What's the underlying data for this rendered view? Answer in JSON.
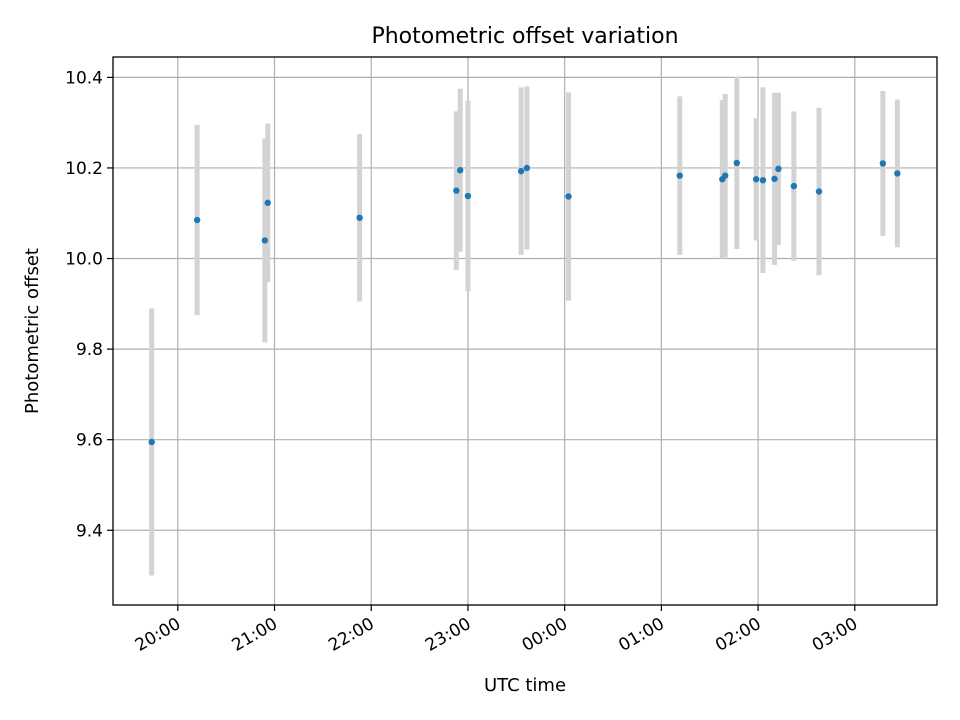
{
  "chart_data": {
    "type": "scatter",
    "title": "Photometric offset variation",
    "xlabel": "UTC time",
    "ylabel": "Photometric offset",
    "x_unit": "hours",
    "xlim": [
      19.33,
      27.85
    ],
    "ylim": [
      9.235,
      10.445
    ],
    "x_ticks": [
      {
        "value": 20,
        "label": "20:00"
      },
      {
        "value": 21,
        "label": "21:00"
      },
      {
        "value": 22,
        "label": "22:00"
      },
      {
        "value": 23,
        "label": "23:00"
      },
      {
        "value": 24,
        "label": "00:00"
      },
      {
        "value": 25,
        "label": "01:00"
      },
      {
        "value": 26,
        "label": "02:00"
      },
      {
        "value": 27,
        "label": "03:00"
      }
    ],
    "y_ticks": [
      {
        "value": 9.4,
        "label": "9.4"
      },
      {
        "value": 9.6,
        "label": "9.6"
      },
      {
        "value": 9.8,
        "label": "9.8"
      },
      {
        "value": 10.0,
        "label": "10.0"
      },
      {
        "value": 10.2,
        "label": "10.2"
      },
      {
        "value": 10.4,
        "label": "10.4"
      }
    ],
    "grid": true,
    "point_color": "#1f77b4",
    "errorbar_color": "#d3d3d3",
    "points": [
      {
        "x": 19.73,
        "y": 9.595,
        "err": 0.295
      },
      {
        "x": 20.2,
        "y": 10.085,
        "err": 0.21
      },
      {
        "x": 20.9,
        "y": 10.04,
        "err": 0.225
      },
      {
        "x": 20.93,
        "y": 10.123,
        "err": 0.175
      },
      {
        "x": 21.88,
        "y": 10.09,
        "err": 0.185
      },
      {
        "x": 22.88,
        "y": 10.15,
        "err": 0.175
      },
      {
        "x": 22.92,
        "y": 10.195,
        "err": 0.18
      },
      {
        "x": 23.0,
        "y": 10.138,
        "err": 0.21
      },
      {
        "x": 23.55,
        "y": 10.193,
        "err": 0.185
      },
      {
        "x": 23.61,
        "y": 10.2,
        "err": 0.18
      },
      {
        "x": 24.04,
        "y": 10.137,
        "err": 0.23
      },
      {
        "x": 25.19,
        "y": 10.183,
        "err": 0.175
      },
      {
        "x": 25.63,
        "y": 10.175,
        "err": 0.175
      },
      {
        "x": 25.66,
        "y": 10.183,
        "err": 0.18
      },
      {
        "x": 25.78,
        "y": 10.211,
        "err": 0.19
      },
      {
        "x": 25.98,
        "y": 10.175,
        "err": 0.135
      },
      {
        "x": 26.05,
        "y": 10.173,
        "err": 0.205
      },
      {
        "x": 26.17,
        "y": 10.176,
        "err": 0.19
      },
      {
        "x": 26.21,
        "y": 10.198,
        "err": 0.168
      },
      {
        "x": 26.37,
        "y": 10.16,
        "err": 0.165
      },
      {
        "x": 26.63,
        "y": 10.148,
        "err": 0.185
      },
      {
        "x": 27.29,
        "y": 10.21,
        "err": 0.16
      },
      {
        "x": 27.44,
        "y": 10.188,
        "err": 0.163
      }
    ]
  }
}
